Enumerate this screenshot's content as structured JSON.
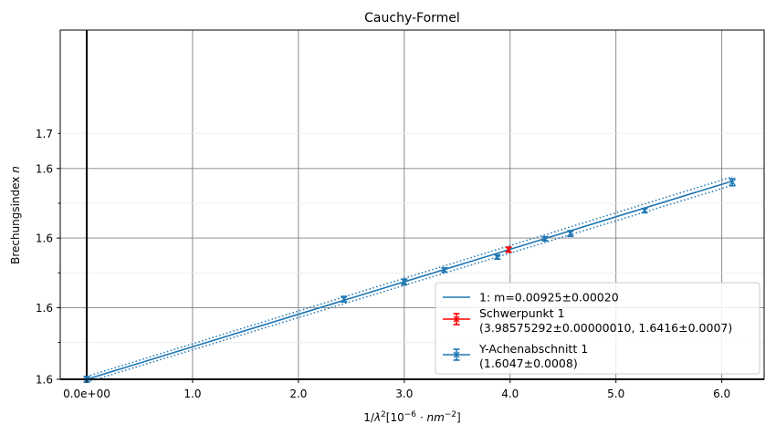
{
  "chart_data": {
    "type": "scatter",
    "title": "Cauchy-Formel",
    "xlabel": "1/λ²[10⁻⁶ · nm⁻²]",
    "ylabel": "Brechungsindex n",
    "xlim": [
      -0.25,
      6.4
    ],
    "ylim": [
      1.6047,
      1.7041
    ],
    "x_ticks": [
      {
        "value": 0,
        "label": "0.0e+00"
      },
      {
        "value": 1,
        "label": "1.0"
      },
      {
        "value": 2,
        "label": "2.0"
      },
      {
        "value": 3,
        "label": "3.0"
      },
      {
        "value": 4,
        "label": "4.0"
      },
      {
        "value": 5,
        "label": "5.0"
      },
      {
        "value": 6,
        "label": "6.0"
      }
    ],
    "y_ticks": [
      {
        "value": 1.6047,
        "label": "1.6"
      },
      {
        "value": 1.6152,
        "label": "1.6"
      },
      {
        "value": 1.6251,
        "label": "1.6"
      },
      {
        "value": 1.635,
        "label": "1.6"
      },
      {
        "value": 1.6449,
        "label": "1.6"
      },
      {
        "value": 1.6548,
        "label": "1.6"
      },
      {
        "value": 1.6647,
        "label": "1.6"
      },
      {
        "value": 1.6747,
        "label": "1.7"
      }
    ],
    "y_major_ticks": [
      1.6047,
      1.6251,
      1.6449,
      1.6647
    ],
    "grid": true,
    "legend_position": "lower-right",
    "fit": {
      "label": "1: m=0.00925±0.00020",
      "slope": 0.00925,
      "slope_err": 0.0002,
      "intercept": 1.6047,
      "x_range": [
        0,
        6.1
      ],
      "color": "#1f77b4"
    },
    "series": [
      {
        "name": "Y-Achenabschnitt 1",
        "color": "#1f77b4",
        "points": [
          {
            "x": 0.0,
            "y": 1.6047,
            "err": 0.0008
          },
          {
            "x": 2.43,
            "y": 1.6275,
            "err": 0.0008
          },
          {
            "x": 3.0,
            "y": 1.6324,
            "err": 0.0008
          },
          {
            "x": 3.38,
            "y": 1.6358,
            "err": 0.0006
          },
          {
            "x": 3.88,
            "y": 1.6395,
            "err": 0.0006
          },
          {
            "x": 4.33,
            "y": 1.6447,
            "err": 0.0006
          },
          {
            "x": 4.57,
            "y": 1.6462,
            "err": 0.0008
          },
          {
            "x": 5.27,
            "y": 1.6527,
            "err": 0.0006
          },
          {
            "x": 6.1,
            "y": 1.6608,
            "err": 0.001
          }
        ]
      },
      {
        "name": "Schwerpunkt 1",
        "color": "#ff0000",
        "points": [
          {
            "x": 3.98575292,
            "y": 1.6416,
            "err": 0.0007
          }
        ]
      }
    ],
    "legend": [
      {
        "kind": "line",
        "color": "#1f77b4",
        "text": "1: m=0.00925±0.00020"
      },
      {
        "kind": "errorbar",
        "color": "#ff0000",
        "text": "Schwerpunkt 1",
        "text2": "(3.98575292±0.00000010, 1.6416±0.0007)"
      },
      {
        "kind": "errorbar",
        "color": "#1f77b4",
        "text": "Y-Achenabschnitt 1",
        "text2": "(1.6047±0.0008)"
      }
    ]
  }
}
